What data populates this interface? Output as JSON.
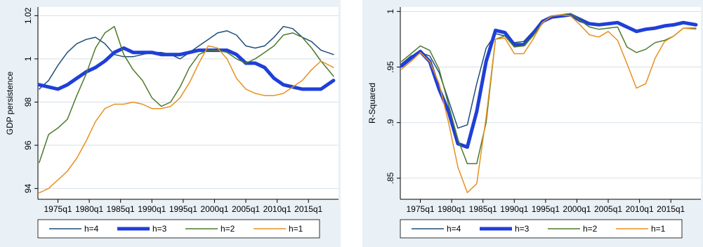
{
  "colors": {
    "h4": "#1f4e79",
    "h3": "#1f3fd8",
    "h2": "#4d7a2a",
    "h1": "#e8901f",
    "panel_bg": "#e9f0f6",
    "plot_bg": "#ffffff",
    "grid": "#d6e0e8"
  },
  "chart_data": [
    {
      "type": "line",
      "title": "",
      "xlabel": "",
      "ylabel": "GDP persistence",
      "xticks": [
        "1975q1",
        "1980q1",
        "1985q1",
        "1990q1",
        "1995q1",
        "2000q1",
        "2005q1",
        "2010q1",
        "2015q1"
      ],
      "xlim": [
        1971.8,
        2019.8
      ],
      "yticks": [
        "94",
        "96",
        "98",
        "1",
        "1.02"
      ],
      "ytick_values": [
        0.94,
        0.96,
        0.98,
        1.0,
        1.02
      ],
      "ylim": [
        0.935,
        1.024
      ],
      "legend_position": "bottom",
      "grid": true,
      "series": [
        {
          "name": "h=4",
          "x": [
            1972,
            1973.5,
            1975,
            1976.5,
            1978,
            1979.5,
            1981,
            1982.5,
            1984,
            1985.5,
            1987,
            1988.5,
            1990,
            1991.5,
            1993,
            1994.5,
            1996,
            1997.5,
            1999,
            2000.5,
            2002,
            2003.5,
            2005,
            2006.5,
            2008,
            2009.5,
            2011,
            2012.5,
            2014,
            2015.5,
            2017,
            2019
          ],
          "y": [
            0.986,
            0.99,
            0.997,
            1.003,
            1.007,
            1.009,
            1.01,
            1.007,
            1.002,
            1.001,
            1.001,
            1.002,
            1.003,
            1.003,
            1.002,
            1.0,
            1.003,
            1.006,
            1.009,
            1.012,
            1.013,
            1.011,
            1.006,
            1.005,
            1.006,
            1.01,
            1.015,
            1.014,
            1.01,
            1.008,
            1.004,
            1.002
          ]
        },
        {
          "name": "h=3",
          "x": [
            1972,
            1973.5,
            1975,
            1976.5,
            1978,
            1979.5,
            1981,
            1982.5,
            1984,
            1985.5,
            1987,
            1988.5,
            1990,
            1991.5,
            1993,
            1994.5,
            1996,
            1997.5,
            1999,
            2000.5,
            2002,
            2003.5,
            2005,
            2006.5,
            2008,
            2009.5,
            2011,
            2012.5,
            2014,
            2015.5,
            2017,
            2019
          ],
          "y": [
            0.988,
            0.987,
            0.986,
            0.988,
            0.991,
            0.994,
            0.996,
            0.999,
            1.003,
            1.005,
            1.003,
            1.003,
            1.003,
            1.002,
            1.002,
            1.002,
            1.003,
            1.004,
            1.004,
            1.004,
            1.004,
            1.002,
            0.998,
            0.998,
            0.996,
            0.991,
            0.988,
            0.987,
            0.986,
            0.986,
            0.986,
            0.99
          ]
        },
        {
          "name": "h=2",
          "x": [
            1972,
            1973.5,
            1975,
            1976.5,
            1978,
            1979.5,
            1981,
            1982.5,
            1984,
            1985.5,
            1987,
            1988.5,
            1990,
            1991.5,
            1993,
            1994.5,
            1996,
            1997.5,
            1999,
            2000.5,
            2002,
            2003.5,
            2005,
            2006.5,
            2008,
            2009.5,
            2011,
            2012.5,
            2014,
            2015.5,
            2017,
            2019
          ],
          "y": [
            0.952,
            0.965,
            0.968,
            0.972,
            0.983,
            0.993,
            1.005,
            1.012,
            1.015,
            1.002,
            0.995,
            0.99,
            0.982,
            0.978,
            0.98,
            0.987,
            0.996,
            1.002,
            1.004,
            1.004,
            1.003,
            1.0,
            0.998,
            1.0,
            1.003,
            1.006,
            1.011,
            1.012,
            1.01,
            1.005,
            0.999,
            0.992
          ]
        },
        {
          "name": "h=1",
          "x": [
            1972,
            1973.5,
            1975,
            1976.5,
            1978,
            1979.5,
            1981,
            1982.5,
            1984,
            1985.5,
            1987,
            1988.5,
            1990,
            1991.5,
            1993,
            1994.5,
            1996,
            1997.5,
            1999,
            2000.5,
            2002,
            2003.5,
            2005,
            2006.5,
            2008,
            2009.5,
            2011,
            2012.5,
            2014,
            2015.5,
            2017,
            2019
          ],
          "y": [
            0.938,
            0.94,
            0.944,
            0.948,
            0.954,
            0.962,
            0.971,
            0.977,
            0.979,
            0.979,
            0.98,
            0.979,
            0.977,
            0.977,
            0.978,
            0.982,
            0.989,
            0.998,
            1.006,
            1.005,
            1.0,
            0.991,
            0.986,
            0.984,
            0.983,
            0.983,
            0.984,
            0.987,
            0.99,
            0.995,
            0.999,
            0.996
          ]
        }
      ]
    },
    {
      "type": "line",
      "title": "",
      "xlabel": "",
      "ylabel": "R-Squared",
      "xticks": [
        "1975q1",
        "1980q1",
        "1985q1",
        "1990q1",
        "1995q1",
        "2000q1",
        "2005q1",
        "2010q1",
        "2015q1"
      ],
      "xlim": [
        1971.8,
        2019.8
      ],
      "yticks": [
        ".85",
        ".9",
        ".95",
        "1"
      ],
      "ytick_values": [
        0.85,
        0.9,
        0.95,
        1.0
      ],
      "ylim": [
        0.831,
        1.004
      ],
      "legend_position": "bottom",
      "grid": true,
      "series": [
        {
          "name": "h=4",
          "x": [
            1972,
            1973.5,
            1975,
            1976.5,
            1978,
            1979.5,
            1981,
            1982.5,
            1984,
            1985.5,
            1987,
            1988.5,
            1990,
            1991.5,
            1993,
            1994.5,
            1996,
            1997.5,
            1999,
            2000.5,
            2002,
            2003.5,
            2005,
            2006.5,
            2008,
            2009.5,
            2011,
            2012.5,
            2014,
            2015.5,
            2017,
            2019
          ],
          "y": [
            0.953,
            0.96,
            0.963,
            0.96,
            0.945,
            0.92,
            0.895,
            0.898,
            0.935,
            0.967,
            0.98,
            0.978,
            0.972,
            0.973,
            0.982,
            0.992,
            0.995,
            0.997,
            0.998,
            0.994,
            0.99,
            0.988,
            0.989,
            0.99,
            0.986,
            0.983,
            0.984,
            0.985,
            0.987,
            0.988,
            0.99,
            0.987
          ]
        },
        {
          "name": "h=3",
          "x": [
            1972,
            1973.5,
            1975,
            1976.5,
            1978,
            1979.5,
            1981,
            1982.5,
            1984,
            1985.5,
            1987,
            1988.5,
            1990,
            1991.5,
            1993,
            1994.5,
            1996,
            1997.5,
            1999,
            2000.5,
            2002,
            2003.5,
            2005,
            2006.5,
            2008,
            2009.5,
            2011,
            2012.5,
            2014,
            2015.5,
            2017,
            2019
          ],
          "y": [
            0.951,
            0.958,
            0.964,
            0.955,
            0.93,
            0.91,
            0.881,
            0.878,
            0.91,
            0.955,
            0.983,
            0.981,
            0.97,
            0.97,
            0.98,
            0.991,
            0.995,
            0.996,
            0.997,
            0.992,
            0.989,
            0.988,
            0.989,
            0.99,
            0.986,
            0.982,
            0.984,
            0.985,
            0.987,
            0.988,
            0.99,
            0.988
          ]
        },
        {
          "name": "h=2",
          "x": [
            1972,
            1973.5,
            1975,
            1976.5,
            1978,
            1979.5,
            1981,
            1982.5,
            1984,
            1985.5,
            1987,
            1988.5,
            1990,
            1991.5,
            1993,
            1994.5,
            1996,
            1997.5,
            1999,
            2000.5,
            2002,
            2003.5,
            2005,
            2006.5,
            2008,
            2009.5,
            2011,
            2012.5,
            2014,
            2015.5,
            2017,
            2019
          ],
          "y": [
            0.955,
            0.962,
            0.969,
            0.965,
            0.948,
            0.916,
            0.885,
            0.863,
            0.863,
            0.9,
            0.975,
            0.978,
            0.968,
            0.969,
            0.978,
            0.99,
            0.996,
            0.997,
            0.998,
            0.992,
            0.986,
            0.984,
            0.985,
            0.986,
            0.968,
            0.963,
            0.966,
            0.972,
            0.974,
            0.978,
            0.985,
            0.985
          ]
        },
        {
          "name": "h=1",
          "x": [
            1972,
            1973.5,
            1975,
            1976.5,
            1978,
            1979.5,
            1981,
            1982.5,
            1984,
            1985.5,
            1987,
            1988.5,
            1990,
            1991.5,
            1993,
            1994.5,
            1996,
            1997.5,
            1999,
            2000.5,
            2002,
            2003.5,
            2005,
            2006.5,
            2008,
            2009.5,
            2011,
            2012.5,
            2014,
            2015.5,
            2017,
            2019
          ],
          "y": [
            0.948,
            0.955,
            0.963,
            0.955,
            0.935,
            0.9,
            0.86,
            0.837,
            0.845,
            0.905,
            0.975,
            0.976,
            0.962,
            0.962,
            0.975,
            0.99,
            0.996,
            0.997,
            0.996,
            0.988,
            0.979,
            0.977,
            0.982,
            0.974,
            0.953,
            0.931,
            0.935,
            0.958,
            0.973,
            0.978,
            0.985,
            0.984
          ]
        }
      ]
    }
  ]
}
